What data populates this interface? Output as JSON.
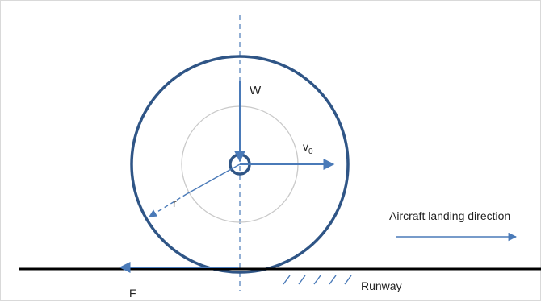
{
  "labels": {
    "weight": "W",
    "velocity": "v",
    "velocity_sub": "0",
    "radius": "r",
    "friction": "F",
    "runway": "Runway",
    "direction": "Aircraft landing direction"
  },
  "colors": {
    "wheel": "#2f5586",
    "arrow": "#4a7ab8",
    "inner_circle": "#c9c9c9",
    "axis": "#4a7ab8",
    "runway": "#000000",
    "text": "#222222"
  }
}
